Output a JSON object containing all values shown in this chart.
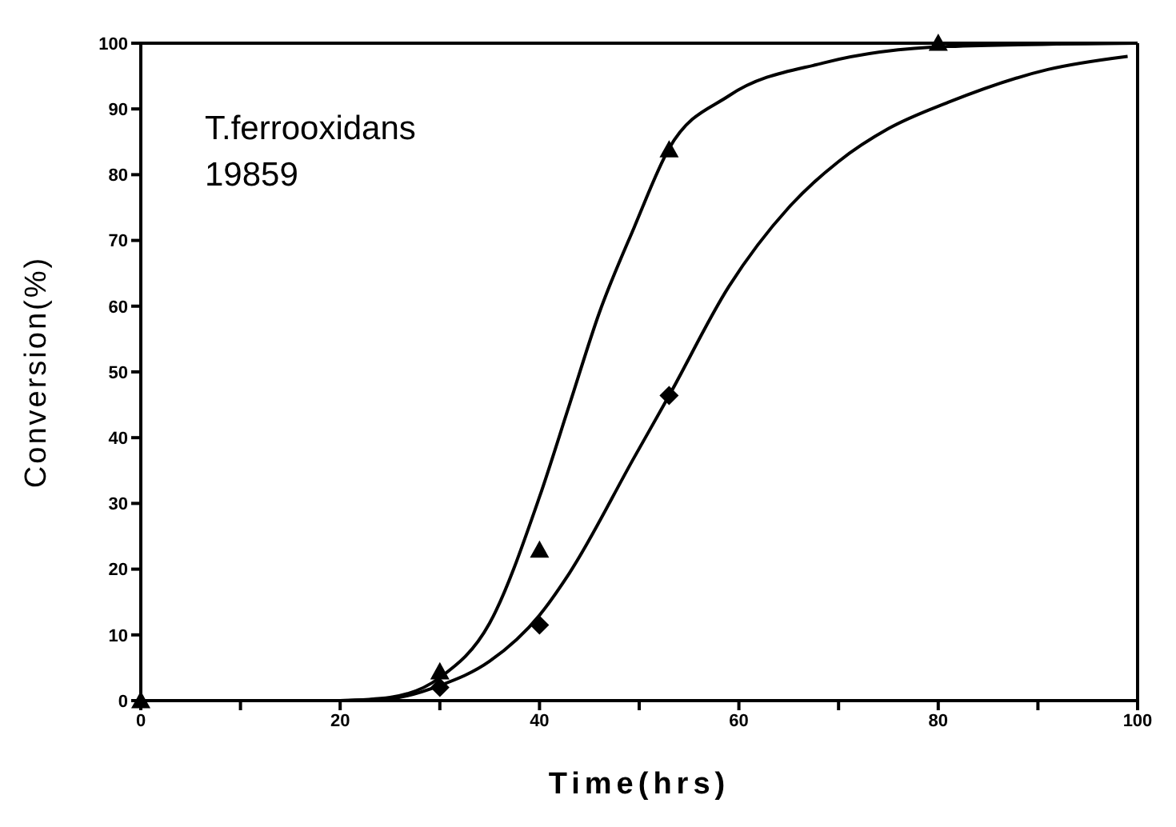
{
  "chart_data": {
    "type": "line",
    "xlabel": "Time(hrs)",
    "ylabel": "Conversion(%)",
    "annotations": [
      "T.ferrooxidans",
      "19859"
    ],
    "xlim": [
      0,
      100
    ],
    "ylim": [
      0,
      100
    ],
    "xticks": [
      0,
      {
        "value": 10,
        "label": null
      },
      20,
      {
        "value": 30,
        "label": null
      },
      40,
      {
        "value": 50,
        "label": null
      },
      60,
      {
        "value": 70,
        "label": null
      },
      80,
      {
        "value": 90,
        "label": null
      },
      100
    ],
    "yticks": [
      0,
      10,
      20,
      30,
      40,
      50,
      60,
      70,
      80,
      90,
      100
    ],
    "grid": false,
    "line_style": "solid",
    "series": [
      {
        "color": "#000000",
        "marker": "none",
        "x": [
          20,
          25,
          30,
          35,
          40,
          43,
          46,
          49.5,
          53,
          59,
          68.5,
          81,
          100
        ],
        "values": [
          0,
          0.5,
          3.5,
          11.8,
          31,
          45,
          59,
          72,
          84,
          92,
          97,
          99.5,
          100
        ]
      },
      {
        "color": "#000000",
        "marker": "none",
        "x": [
          20,
          25,
          30,
          35,
          40,
          43,
          49.5,
          53,
          59,
          65,
          70,
          75,
          81,
          91,
          99
        ],
        "values": [
          0,
          0.3,
          2.3,
          6,
          13,
          19.4,
          37,
          46.4,
          63,
          75,
          82,
          87,
          91,
          96,
          98
        ]
      },
      {
        "type": "scatter",
        "color": "#000000",
        "marker": "triangle",
        "x": [
          0,
          30,
          40,
          53,
          80
        ],
        "values": [
          0,
          4.4,
          22.9,
          83.8,
          100
        ]
      },
      {
        "type": "scatter",
        "color": "#000000",
        "marker": "diamond",
        "x": [
          30,
          40,
          53
        ],
        "values": [
          2,
          11.5,
          46.4
        ]
      }
    ]
  }
}
